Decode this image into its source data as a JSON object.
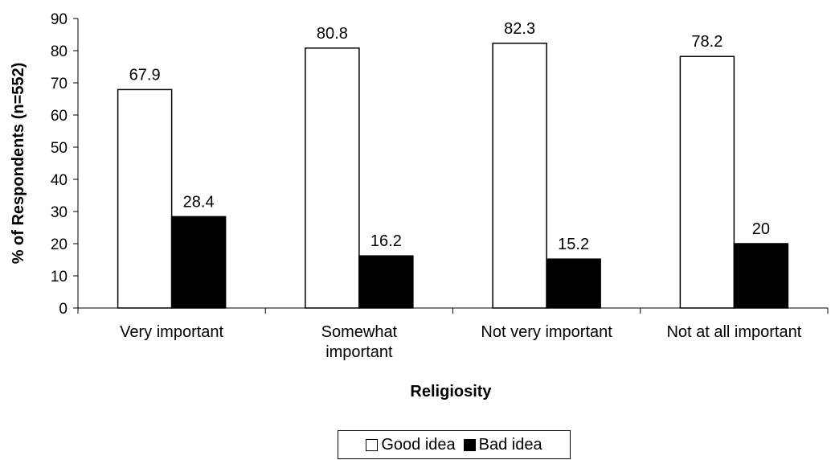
{
  "chart_data": {
    "type": "bar",
    "categories": [
      [
        "Very important"
      ],
      [
        "Somewhat",
        "important"
      ],
      [
        "Not very important"
      ],
      [
        "Not at all important"
      ]
    ],
    "series": [
      {
        "name": "Good idea",
        "values": [
          67.9,
          80.8,
          82.3,
          78.2
        ],
        "labels": [
          "67.9",
          "80.8",
          "82.3",
          "78.2"
        ],
        "color": "#ffffff"
      },
      {
        "name": "Bad idea",
        "values": [
          28.4,
          16.2,
          15.2,
          20
        ],
        "labels": [
          "28.4",
          "16.2",
          "15.2",
          "20"
        ],
        "color": "#000000"
      }
    ],
    "title": "",
    "xlabel": "Religiosity",
    "ylabel": "% of Respondents (n=552)",
    "ylim": [
      0,
      90
    ],
    "yticks": [
      0,
      10,
      20,
      30,
      40,
      50,
      60,
      70,
      80,
      90
    ],
    "grid": false,
    "legend_position": "bottom"
  }
}
